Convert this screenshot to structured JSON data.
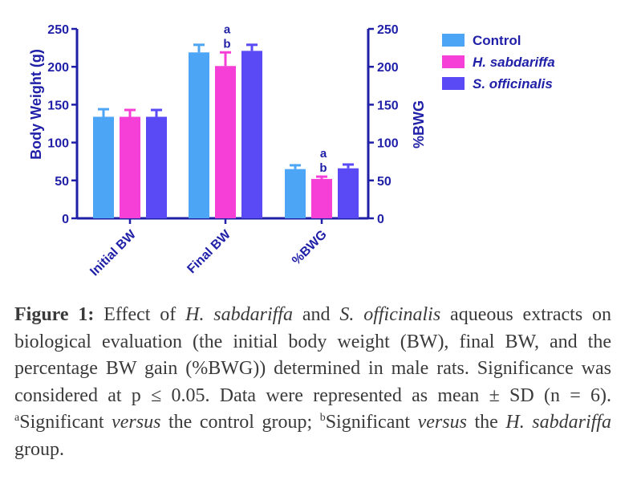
{
  "chart_data": {
    "type": "bar",
    "categories": [
      "Initial BW",
      "Final BW",
      "%BWG"
    ],
    "ylabel": "Body Weight (g)",
    "ylabel_right": "%BWG",
    "ylim": [
      0,
      250
    ],
    "ylim_right": [
      0,
      250
    ],
    "yticks": [
      0,
      50,
      100,
      150,
      200,
      250
    ],
    "grid": false,
    "legend_position": "top-right",
    "series": [
      {
        "name": "Control",
        "color": "#4da6f5",
        "values": [
          134,
          219,
          65
        ],
        "errors": [
          10,
          10,
          5
        ],
        "annotations": [
          "",
          "",
          ""
        ]
      },
      {
        "name": "H. sabdariffa",
        "color": "#f53fd6",
        "values": [
          134,
          201,
          52
        ],
        "errors": [
          9,
          18,
          3
        ],
        "annotations": [
          "",
          "a\nb",
          "a\nb"
        ]
      },
      {
        "name": "S. officinalis",
        "color": "#5a4af5",
        "values": [
          134,
          221,
          66
        ],
        "errors": [
          9,
          8,
          5
        ],
        "annotations": [
          "",
          "",
          ""
        ]
      }
    ]
  },
  "caption": {
    "label": "Figure 1:",
    "t1": " Effect of ",
    "sp1": "H. sabdariffa",
    "t2": " and ",
    "sp2": "S. officinalis",
    "t3": " aqueous extracts on biological evaluation (the initial body weight (BW), final BW, and the percentage BW gain (%BWG)) determined in male rats. Significance was considered at p ≤ 0.05. Data were represented as mean ± SD (n = 6). ",
    "supA": "a",
    "t4": "Significant ",
    "v1": "versus",
    "t5": " the control group; ",
    "supB": "b",
    "t6": "Significant ",
    "v2": "versus",
    "t7": " the ",
    "sp3": "H. sabdariffa",
    "t8": " group."
  }
}
